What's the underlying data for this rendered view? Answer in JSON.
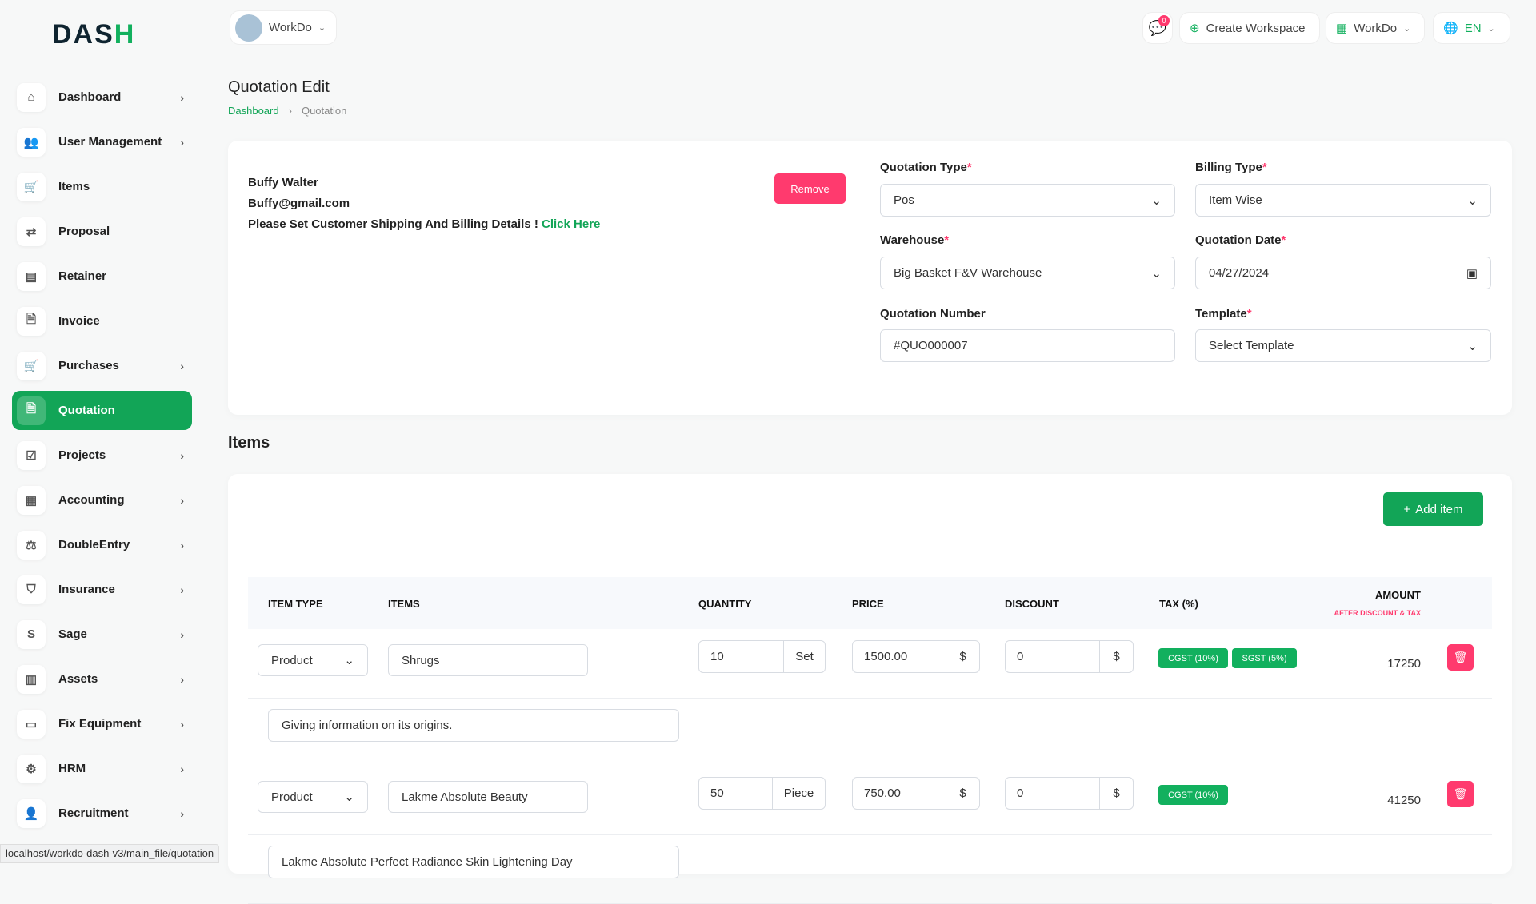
{
  "brand": {
    "logo": "DASH",
    "accent": "#12a557",
    "danger": "#ff3a6e"
  },
  "header": {
    "workspace": "WorkDo",
    "notif_count": "0",
    "create_workspace": "Create Workspace",
    "workspace_menu": "WorkDo",
    "language": "EN"
  },
  "sidebar": {
    "items": [
      {
        "label": "Dashboard",
        "icon": "home-icon",
        "arrow": true
      },
      {
        "label": "User Management",
        "icon": "users-icon",
        "arrow": true
      },
      {
        "label": "Items",
        "icon": "cart-icon",
        "arrow": false
      },
      {
        "label": "Proposal",
        "icon": "swap-icon",
        "arrow": false
      },
      {
        "label": "Retainer",
        "icon": "file-icon",
        "arrow": false
      },
      {
        "label": "Invoice",
        "icon": "invoice-icon",
        "arrow": false
      },
      {
        "label": "Purchases",
        "icon": "cart-icon",
        "arrow": true
      },
      {
        "label": "Quotation",
        "icon": "quote-icon",
        "arrow": false,
        "active": true
      },
      {
        "label": "Projects",
        "icon": "check-square-icon",
        "arrow": true
      },
      {
        "label": "Accounting",
        "icon": "grid-icon",
        "arrow": true
      },
      {
        "label": "DoubleEntry",
        "icon": "scale-icon",
        "arrow": true
      },
      {
        "label": "Insurance",
        "icon": "shield-icon",
        "arrow": true
      },
      {
        "label": "Sage",
        "icon": "s-icon",
        "arrow": true
      },
      {
        "label": "Assets",
        "icon": "calculator-icon",
        "arrow": true
      },
      {
        "label": "Fix Equipment",
        "icon": "box-icon",
        "arrow": true
      },
      {
        "label": "HRM",
        "icon": "gear-icon",
        "arrow": true
      },
      {
        "label": "Recruitment",
        "icon": "user-plus-icon",
        "arrow": true
      }
    ]
  },
  "page": {
    "title": "Quotation Edit",
    "breadcrumb": [
      "Dashboard",
      "Quotation"
    ]
  },
  "customer": {
    "name": "Buffy Walter",
    "email": "Buffy@gmail.com",
    "notice": "Please Set Customer Shipping And Billing Details !",
    "link": "Click Here",
    "remove": "Remove"
  },
  "form": {
    "quotation_type": {
      "label": "Quotation Type",
      "value": "Pos"
    },
    "billing_type": {
      "label": "Billing Type",
      "value": "Item Wise"
    },
    "warehouse": {
      "label": "Warehouse",
      "value": "Big Basket F&V Warehouse"
    },
    "date": {
      "label": "Quotation Date",
      "value": "04/27/2024"
    },
    "number": {
      "label": "Quotation Number",
      "value": "#QUO000007"
    },
    "template": {
      "label": "Template",
      "value": "Select Template"
    }
  },
  "items": {
    "heading": "Items",
    "add": "Add item",
    "columns": [
      "ITEM TYPE",
      "ITEMS",
      "QUANTITY",
      "PRICE",
      "DISCOUNT",
      "TAX (%)",
      "AMOUNT"
    ],
    "amount_sub": "AFTER DISCOUNT & TAX",
    "rows": [
      {
        "type": "Product",
        "item": "Shrugs",
        "qty": "10",
        "unit": "Set",
        "price": "1500.00",
        "currency": "$",
        "discount": "0",
        "taxes": [
          "CGST (10%)",
          "SGST (5%)"
        ],
        "amount": "17250",
        "description": "Giving information on its origins."
      },
      {
        "type": "Product",
        "item": "Lakme Absolute Beauty",
        "qty": "50",
        "unit": "Piece",
        "price": "750.00",
        "currency": "$",
        "discount": "0",
        "taxes": [
          "CGST (10%)"
        ],
        "amount": "41250",
        "description": "Lakme Absolute Perfect Radiance Skin Lightening Day"
      }
    ]
  },
  "statusbar": "localhost/workdo-dash-v3/main_file/quotation"
}
